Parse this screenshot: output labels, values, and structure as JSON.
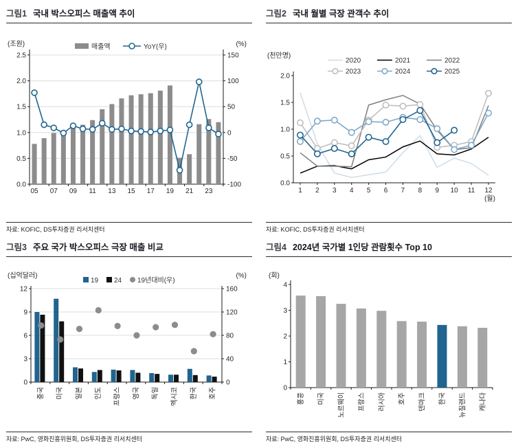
{
  "figures": {
    "fig1": {
      "label": "그림1",
      "title": "국내 박스오피스 매출액 추이",
      "unit_left": "(조원)",
      "unit_right": "(%)",
      "source": "자료: KOFIC, DS투자증권 리서치센터"
    },
    "fig2": {
      "label": "그림2",
      "title": "국내 월별 극장 관객수 추이",
      "unit_left": "(천만명)",
      "x_unit": "(월)",
      "source": "자료: KOFIC, DS투자증권 리서치센터"
    },
    "fig3": {
      "label": "그림3",
      "title": "주요 국가 박스오피스 극장 매출 비교",
      "unit_left": "(십억달러)",
      "unit_right": "(%)",
      "source": "자료: PwC, 영화진흥위원회, DS투자증권 리서치센터"
    },
    "fig4": {
      "label": "그림4",
      "title": "2024년 국가별 1인당 관람횟수 Top 10",
      "unit_left": "(회)",
      "source": "자료: PwC, 영화진흥위원회, DS투자증권 리서치센터"
    }
  },
  "chart_data": [
    {
      "id": "fig1",
      "type": "bar",
      "title": "국내 박스오피스 매출액 추이",
      "categories": [
        "05",
        "06",
        "07",
        "08",
        "09",
        "10",
        "11",
        "12",
        "13",
        "14",
        "15",
        "16",
        "17",
        "18",
        "19",
        "20",
        "21",
        "22",
        "23",
        "24"
      ],
      "x_tick_labels": [
        "05",
        "07",
        "09",
        "11",
        "13",
        "15",
        "17",
        "19",
        "21",
        "23"
      ],
      "series": [
        {
          "name": "매출액",
          "type": "bar",
          "axis": "left",
          "color": "#8c8c8c",
          "values": [
            0.78,
            0.89,
            0.99,
            0.98,
            1.09,
            1.15,
            1.24,
            1.45,
            1.55,
            1.66,
            1.72,
            1.74,
            1.76,
            1.81,
            1.91,
            0.51,
            0.58,
            1.16,
            1.26,
            1.2
          ]
        },
        {
          "name": "YoY(우)",
          "type": "line",
          "axis": "right",
          "color": "#20648f",
          "values": [
            77,
            15,
            9,
            -1,
            13,
            7,
            6,
            18,
            6,
            7,
            3,
            2,
            1,
            3,
            5,
            -73,
            15,
            98,
            9,
            -3
          ]
        }
      ],
      "ylabel_left": "(조원)",
      "ylabel_right": "(%)",
      "ylim_left": [
        0,
        2.5
      ],
      "yticks_left": [
        0,
        0.5,
        1,
        1.5,
        2,
        2.5
      ],
      "ylim_right": [
        -100,
        150
      ],
      "yticks_right": [
        -100,
        -50,
        0,
        50,
        100,
        150
      ],
      "grid": true,
      "legend_position": "top"
    },
    {
      "id": "fig2",
      "type": "line",
      "title": "국내 월별 극장 관객수 추이",
      "x": [
        1,
        2,
        3,
        4,
        5,
        6,
        7,
        8,
        9,
        10,
        11,
        12
      ],
      "xlabel": "(월)",
      "ylabel": "(천만명)",
      "ylim": [
        0,
        2
      ],
      "yticks": [
        0,
        0.5,
        1,
        1.5,
        2
      ],
      "grid": false,
      "legend_position": "top",
      "series": [
        {
          "name": "2020",
          "color": "#ccdde9",
          "marker": false,
          "values": [
            1.68,
            0.73,
            0.18,
            0.1,
            0.15,
            0.2,
            0.56,
            0.88,
            0.29,
            0.46,
            0.36,
            0.14
          ]
        },
        {
          "name": "2021",
          "color": "#000000",
          "marker": false,
          "values": [
            0.18,
            0.31,
            0.32,
            0.26,
            0.43,
            0.48,
            0.67,
            0.78,
            0.54,
            0.52,
            0.63,
            0.85
          ]
        },
        {
          "name": "2022",
          "color": "#7f7f7f",
          "marker": false,
          "values": [
            0.56,
            0.31,
            0.31,
            0.3,
            1.45,
            1.55,
            1.63,
            1.47,
            0.98,
            0.62,
            0.65,
            1.44
          ]
        },
        {
          "name": "2023",
          "color": "#bfbfbf",
          "marker": true,
          "values": [
            1.12,
            0.64,
            0.75,
            0.69,
            1.17,
            1.45,
            1.43,
            1.46,
            0.66,
            0.7,
            0.77,
            1.67
          ]
        },
        {
          "name": "2024",
          "color": "#7fa9c9",
          "marker": true,
          "values": [
            0.77,
            1.15,
            1.17,
            0.94,
            1.14,
            1.13,
            1.22,
            1.18,
            1.01,
            0.62,
            0.7,
            1.3
          ]
        },
        {
          "name": "2025",
          "color": "#20648f",
          "marker": true,
          "values": [
            0.89,
            0.54,
            0.64,
            0.54,
            0.85,
            0.77,
            1.18,
            1.35,
            0.75,
            0.98
          ]
        }
      ]
    },
    {
      "id": "fig3",
      "type": "bar",
      "title": "주요 국가 박스오피스 극장 매출 비교",
      "categories": [
        "중국",
        "미국",
        "일본",
        "인도",
        "프랑스",
        "영국",
        "독일",
        "멕시코",
        "한국",
        "호주"
      ],
      "series": [
        {
          "name": "19",
          "type": "bar",
          "axis": "left",
          "color": "#20648f",
          "values": [
            9.0,
            10.7,
            1.9,
            1.3,
            1.6,
            1.55,
            1.15,
            0.95,
            1.7,
            0.85
          ]
        },
        {
          "name": "24",
          "type": "bar",
          "axis": "left",
          "color": "#111111",
          "values": [
            8.65,
            7.8,
            1.75,
            1.55,
            1.5,
            1.2,
            1.05,
            0.95,
            0.9,
            0.7
          ]
        },
        {
          "name": "19년대비(우)",
          "type": "scatter",
          "axis": "right",
          "color": "#8c8c8c",
          "values": [
            97,
            73,
            91,
            123,
            96,
            80,
            94,
            98,
            53,
            82
          ]
        }
      ],
      "ylabel_left": "(십억달러)",
      "ylabel_right": "(%)",
      "ylim_left": [
        0,
        12
      ],
      "yticks_left": [
        0,
        3,
        6,
        9,
        12
      ],
      "ylim_right": [
        0,
        160
      ],
      "yticks_right": [
        0,
        40,
        80,
        120,
        160
      ],
      "grid": true,
      "legend_position": "top"
    },
    {
      "id": "fig4",
      "type": "bar",
      "title": "2024년 국가별 1인당 관람횟수 Top 10",
      "categories": [
        "홍콩",
        "미국",
        "노르웨이",
        "프랑스",
        "러시아",
        "호주",
        "덴마크",
        "한국",
        "뉴질랜드",
        "캐나다"
      ],
      "values": [
        3.57,
        3.55,
        3.25,
        3.07,
        2.98,
        2.58,
        2.56,
        2.43,
        2.38,
        2.32
      ],
      "highlight_index": 7,
      "highlight_color": "#20648f",
      "bar_color": "#a6a6a6",
      "ylabel": "(회)",
      "ylim": [
        0,
        4
      ],
      "yticks": [
        0,
        1,
        2,
        3,
        4
      ],
      "grid": false
    }
  ],
  "colors": {
    "accent": "#20648f",
    "axis": "#1a1a1a",
    "grid": "#dcdcdc",
    "bar_gray": "#8c8c8c",
    "black_bar": "#111111",
    "dot_gray": "#8c8c8c",
    "tick_text": "#262626"
  }
}
